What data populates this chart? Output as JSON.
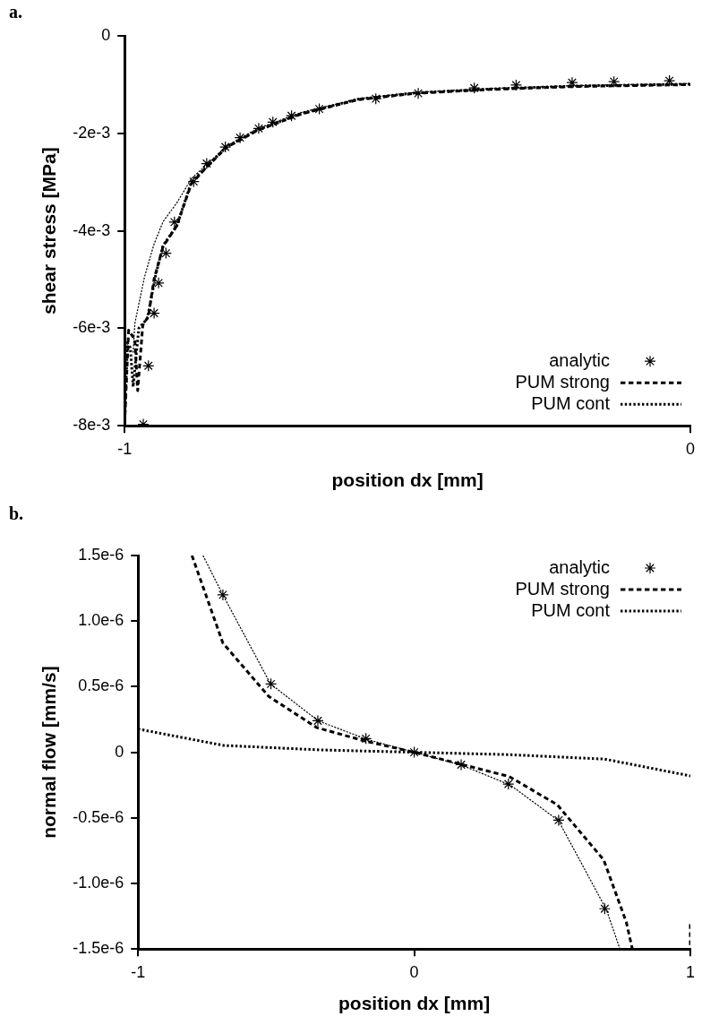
{
  "chart_data": [
    {
      "type": "line",
      "title": "a.",
      "xlabel": "position dx [mm]",
      "ylabel": "shear stress [MPa]",
      "xlim": [
        -1,
        0
      ],
      "xticks": [
        -1,
        0
      ],
      "ylim": [
        -0.008,
        0
      ],
      "yticks": [
        {
          "value": -0.008,
          "label": "-8e-3"
        },
        {
          "value": -0.006,
          "label": "-6e-3"
        },
        {
          "value": -0.004,
          "label": "-4e-3"
        },
        {
          "value": -0.002,
          "label": "-2e-3"
        },
        0
      ],
      "grid": false,
      "legend": "bottom right",
      "series": [
        {
          "name": "analytic",
          "type": "scatter",
          "marker": "cross",
          "color": "#000000",
          "x": [
            -0.967,
            -0.958,
            -0.948,
            -0.94,
            -0.927,
            -0.912,
            -0.878,
            -0.855,
            -0.822,
            -0.796,
            -0.763,
            -0.738,
            -0.705,
            -0.656,
            -0.556,
            -0.481,
            -0.382,
            -0.308,
            -0.209,
            -0.135,
            -0.037
          ],
          "values": [
            -0.00797,
            -0.00677,
            -0.00569,
            -0.00507,
            -0.00446,
            -0.00382,
            -0.00299,
            -0.00262,
            -0.00228,
            -0.00209,
            -0.0019,
            -0.00177,
            -0.00164,
            -0.0015,
            -0.00129,
            -0.00118,
            -0.00107,
            -0.00101,
            -0.00096,
            -0.00094,
            -0.00092
          ]
        },
        {
          "name": "PUM strong",
          "line_style": "dashed",
          "color": "#000000",
          "x": [
            -1,
            -0.993,
            -0.982,
            -0.977,
            -0.968,
            -0.958,
            -0.948,
            -0.932,
            -0.908,
            -0.882,
            -0.853,
            -0.82,
            -0.765,
            -0.687,
            -0.587,
            -0.487,
            -0.353,
            -0.203,
            0
          ],
          "values": [
            -0.00794,
            -0.00604,
            -0.00623,
            -0.00728,
            -0.00594,
            -0.00575,
            -0.00499,
            -0.00432,
            -0.0039,
            -0.00303,
            -0.00267,
            -0.00229,
            -0.00194,
            -0.0016,
            -0.00131,
            -0.00118,
            -0.0011,
            -0.00104,
            -0.001
          ]
        },
        {
          "name": "PUM cont",
          "line_style": "dotted",
          "color": "#000000",
          "x": [
            -1,
            -0.995,
            -0.99,
            -0.985,
            -0.975,
            -0.96,
            -0.945,
            -0.932,
            -0.908,
            -0.882,
            -0.853,
            -0.82,
            -0.765,
            -0.687,
            -0.587,
            -0.487,
            -0.353,
            -0.203,
            0
          ],
          "values": [
            -0.0079,
            -0.0063,
            -0.0064,
            -0.0072,
            -0.006,
            -0.0058,
            -0.0049,
            -0.0043,
            -0.0039,
            -0.003,
            -0.00266,
            -0.00228,
            -0.00193,
            -0.00159,
            -0.0013,
            -0.00117,
            -0.00109,
            -0.00103,
            -0.00099
          ]
        },
        {
          "line_style": "dashed",
          "color": "#000000",
          "x": [
            -0.985,
            -0.982,
            -0.965,
            -0.948,
            -0.932,
            -0.908,
            -0.882,
            -0.853,
            -0.82,
            -0.765,
            -0.687,
            -0.587,
            -0.487,
            -0.353,
            -0.203,
            0
          ],
          "values": [
            -0.0065,
            -0.0059,
            -0.00495,
            -0.00427,
            -0.00381,
            -0.00343,
            -0.00293,
            -0.00262,
            -0.00226,
            -0.0019,
            -0.00157,
            -0.00129,
            -0.00116,
            -0.00108,
            -0.00102,
            -0.00098
          ]
        }
      ]
    },
    {
      "type": "line",
      "title": "b.",
      "xlabel": "position dx [mm]",
      "ylabel": "normal flow [mm/s]",
      "xlim": [
        -1,
        1
      ],
      "xticks": [
        -1,
        0,
        1
      ],
      "ylim": [
        -1.5e-06,
        1.5e-06
      ],
      "yticks": [
        {
          "value": -1.5e-06,
          "label": "-1.5e-6"
        },
        {
          "value": -1e-06,
          "label": "-1.0e-6"
        },
        {
          "value": -5e-07,
          "label": "-0.5e-6"
        },
        0,
        {
          "value": 5e-07,
          "label": "0.5e-6"
        },
        {
          "value": 1e-06,
          "label": "1.0e-6"
        },
        {
          "value": 1.5e-06,
          "label": "1.5e-6"
        }
      ],
      "grid": false,
      "legend": "top right",
      "series": [
        {
          "name": "analytic",
          "type": "scatter",
          "marker": "cross",
          "color": "#000000",
          "x": [
            -0.693,
            -0.519,
            -0.349,
            -0.175,
            0,
            0.17,
            0.341,
            0.523,
            0.69
          ],
          "values": [
            1.2e-06,
            5.21e-07,
            2.4e-07,
            1.04e-07,
            0,
            -9.5e-08,
            -2.42e-07,
            -5.18e-07,
            -1.193e-06
          ]
        },
        {
          "name": "PUM strong",
          "line_style": "dashed",
          "color": "#000000",
          "x": [
            -1,
            -1,
            -0.9,
            -0.805,
            -0.693,
            -0.527,
            -0.353,
            -0.179,
            0,
            0.344,
            0.518,
            0.686,
            0.768,
            0.79,
            0.9,
            1,
            1
          ],
          "values": [
            1.5e-06,
            1.31e-06,
            null,
            1.5e-06,
            8.33e-07,
            4.26e-07,
            1.88e-07,
            8.6e-08,
            0,
            -1.85e-07,
            -4e-07,
            -8.2e-07,
            -1.295e-06,
            -1.5e-06,
            null,
            -1.31e-06,
            -1.5e-06
          ]
        },
        {
          "name": "PUM cont",
          "line_style": "dotted",
          "color": "#000000",
          "x": [
            -1,
            -0.69,
            -0.341,
            0,
            0.341,
            0.69,
            1
          ],
          "values": [
            1.77e-07,
            5.2e-08,
            1.8e-08,
            0,
            -1.8e-08,
            -5.2e-08,
            -1.8e-07
          ]
        },
        {
          "line_style": "dashed",
          "color": "#000000",
          "x": [
            -0.765,
            -0.693,
            -0.52,
            -0.348,
            -0.174,
            0,
            0.174,
            0.348,
            0.522,
            0.696,
            0.745
          ],
          "values": [
            1.5e-06,
            1.2e-06,
            5.2e-07,
            2.4e-07,
            1e-07,
            0,
            -1e-07,
            -2.5e-07,
            -5.2e-07,
            -1.2e-06,
            -1.5e-06
          ]
        }
      ]
    }
  ]
}
